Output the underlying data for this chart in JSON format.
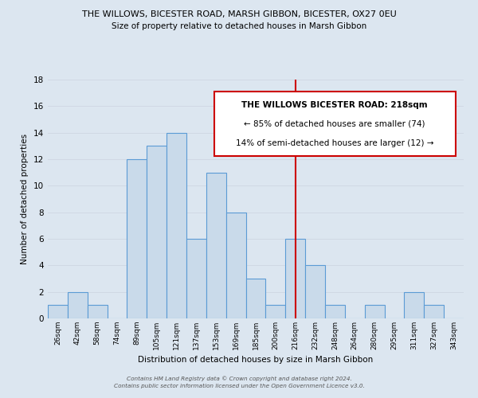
{
  "title": "THE WILLOWS, BICESTER ROAD, MARSH GIBBON, BICESTER, OX27 0EU",
  "subtitle": "Size of property relative to detached houses in Marsh Gibbon",
  "xlabel": "Distribution of detached houses by size in Marsh Gibbon",
  "ylabel": "Number of detached properties",
  "bin_labels": [
    "26sqm",
    "42sqm",
    "58sqm",
    "74sqm",
    "89sqm",
    "105sqm",
    "121sqm",
    "137sqm",
    "153sqm",
    "169sqm",
    "185sqm",
    "200sqm",
    "216sqm",
    "232sqm",
    "248sqm",
    "264sqm",
    "280sqm",
    "295sqm",
    "311sqm",
    "327sqm",
    "343sqm"
  ],
  "bar_heights": [
    1,
    2,
    1,
    0,
    12,
    13,
    14,
    6,
    11,
    8,
    3,
    1,
    6,
    4,
    1,
    0,
    1,
    0,
    2,
    1,
    0
  ],
  "bar_color": "#c9daea",
  "bar_edge_color": "#5b9bd5",
  "grid_color": "#d0d8e4",
  "vline_x_index": 12,
  "vline_color": "#cc0000",
  "annotation_title": "THE WILLOWS BICESTER ROAD: 218sqm",
  "annotation_line1": "← 85% of detached houses are smaller (74)",
  "annotation_line2": "14% of semi-detached houses are larger (12) →",
  "annotation_box_color": "#cc0000",
  "footer_line1": "Contains HM Land Registry data © Crown copyright and database right 2024.",
  "footer_line2": "Contains public sector information licensed under the Open Government Licence v3.0.",
  "ylim": [
    0,
    18
  ],
  "yticks": [
    0,
    2,
    4,
    6,
    8,
    10,
    12,
    14,
    16,
    18
  ],
  "background_color": "#dce6f0",
  "plot_bg_color": "#dce6f0"
}
